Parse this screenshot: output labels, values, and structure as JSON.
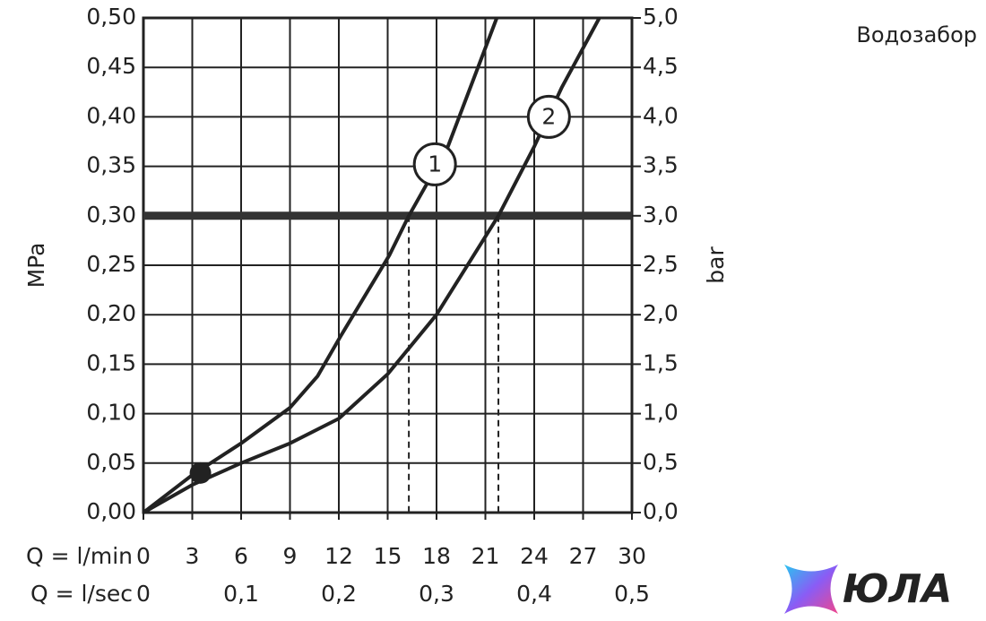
{
  "chart_data": {
    "type": "line",
    "title": "Водозабор",
    "y_label": "MPa",
    "y2_label": "bar",
    "x_label": "Q = l/min",
    "x2_label": "Q = l/sec",
    "watermark": "ЮЛА",
    "xlim": [
      0,
      30
    ],
    "xticks": [
      0,
      3,
      6,
      9,
      12,
      15,
      18,
      21,
      24,
      27,
      30
    ],
    "x2lim": [
      0,
      0.5
    ],
    "x2ticks": [
      0,
      {
        "value": 0.1,
        "label": "0,1"
      },
      {
        "value": 0.2,
        "label": "0,2"
      },
      {
        "value": 0.3,
        "label": "0,3"
      },
      {
        "value": 0.4,
        "label": "0,4"
      },
      {
        "value": 0.5,
        "label": "0,5"
      }
    ],
    "ylim": [
      0,
      0.5
    ],
    "yticks": [
      {
        "value": 0,
        "label": "0,00"
      },
      {
        "value": 0.05,
        "label": "0,05"
      },
      {
        "value": 0.1,
        "label": "0,10"
      },
      {
        "value": 0.15,
        "label": "0,15"
      },
      {
        "value": 0.2,
        "label": "0,20"
      },
      {
        "value": 0.25,
        "label": "0,25"
      },
      {
        "value": 0.3,
        "label": "0,30"
      },
      {
        "value": 0.35,
        "label": "0,35"
      },
      {
        "value": 0.4,
        "label": "0,40"
      },
      {
        "value": 0.45,
        "label": "0,45"
      },
      {
        "value": 0.5,
        "label": "0,50"
      }
    ],
    "y2lim": [
      0,
      5
    ],
    "y2ticks": [
      {
        "value": 0,
        "label": "0,0"
      },
      {
        "value": 0.5,
        "label": "0,5"
      },
      {
        "value": 1,
        "label": "1,0"
      },
      {
        "value": 1.5,
        "label": "1,5"
      },
      {
        "value": 2,
        "label": "2,0"
      },
      {
        "value": 2.5,
        "label": "2,5"
      },
      {
        "value": 3,
        "label": "3,0"
      },
      {
        "value": 3.5,
        "label": "3,5"
      },
      {
        "value": 4,
        "label": "4,0"
      },
      {
        "value": 4.5,
        "label": "4,5"
      },
      {
        "value": 5,
        "label": "5,0"
      }
    ],
    "grid": true,
    "threshold": 0.3,
    "reference_x": [
      16.3,
      21.8
    ],
    "point": {
      "x": 3.5,
      "y": 0.04
    },
    "series": [
      {
        "name": "1",
        "color": "#222222",
        "x": [
          0,
          3,
          6,
          9,
          10.7,
          12.1,
          15.1,
          16.3,
          18.7,
          21.7
        ],
        "values": [
          0,
          0.038,
          0.07,
          0.106,
          0.138,
          0.178,
          0.26,
          0.3,
          0.37,
          0.5
        ],
        "label_at": [
          17.9,
          0.352
        ]
      },
      {
        "name": "2",
        "color": "#222222",
        "x": [
          0,
          3,
          6,
          9,
          12,
          15,
          18,
          21.8,
          24,
          25.7,
          28
        ],
        "values": [
          0,
          0.028,
          0.05,
          0.07,
          0.095,
          0.14,
          0.2,
          0.3,
          0.37,
          0.43,
          0.5
        ],
        "label_at": [
          24.9,
          0.4
        ]
      }
    ]
  }
}
